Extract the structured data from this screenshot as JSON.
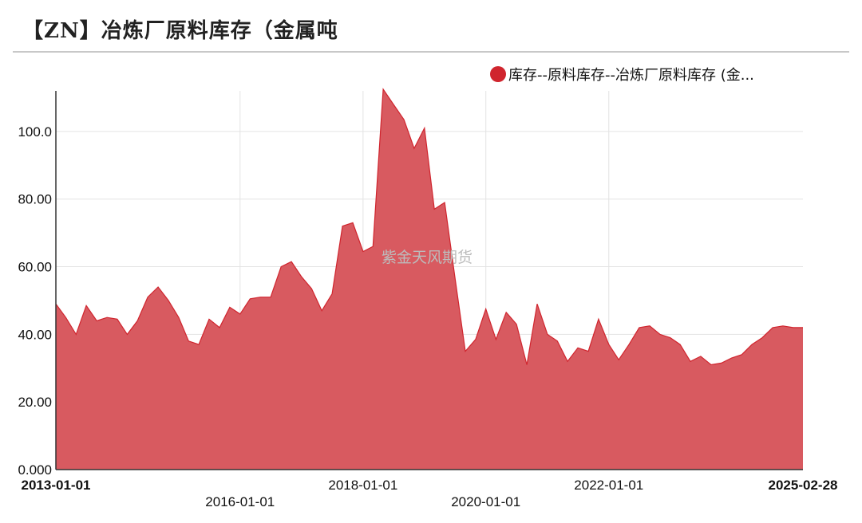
{
  "chart_data": {
    "type": "area",
    "title": "【ZN】冶炼厂原料库存（金属吨",
    "legend": [
      "库存--原料库存--冶炼厂原料库存 (金..."
    ],
    "watermark": "紫金天风期货",
    "series_color": "#d0252e",
    "fill_color": "#d85a60",
    "grid": true,
    "legend_position": "top-right",
    "ylim": [
      0,
      112
    ],
    "y_ticks": [
      {
        "value": 0,
        "label": "0.000"
      },
      {
        "value": 20,
        "label": "20.00"
      },
      {
        "value": 40,
        "label": "40.00"
      },
      {
        "value": 60,
        "label": "60.00"
      },
      {
        "value": 80,
        "label": "80.00"
      },
      {
        "value": 100,
        "label": "100.0"
      }
    ],
    "x_ticks": [
      {
        "date": "2013-01-01",
        "label": "2013-01-01",
        "bold": true,
        "row": 0
      },
      {
        "date": "2016-01-01",
        "label": "2016-01-01",
        "bold": false,
        "row": 1
      },
      {
        "date": "2018-01-01",
        "label": "2018-01-01",
        "bold": false,
        "row": 0
      },
      {
        "date": "2020-01-01",
        "label": "2020-01-01",
        "bold": false,
        "row": 1
      },
      {
        "date": "2022-01-01",
        "label": "2022-01-01",
        "bold": false,
        "row": 0
      },
      {
        "date": "2025-02-28",
        "label": "2025-02-28",
        "bold": true,
        "row": 0
      }
    ],
    "x_grid_dates": [
      "2016-01-01",
      "2018-01-01",
      "2020-01-01",
      "2022-01-01"
    ],
    "xlim": [
      "2013-01-01",
      "2025-02-28"
    ],
    "points": [
      [
        "2013-01-01",
        49
      ],
      [
        "2013-03-01",
        45
      ],
      [
        "2013-05-01",
        40
      ],
      [
        "2013-07-01",
        48.5
      ],
      [
        "2013-09-01",
        44
      ],
      [
        "2013-11-01",
        45
      ],
      [
        "2014-01-01",
        44.5
      ],
      [
        "2014-03-01",
        40
      ],
      [
        "2014-05-01",
        44
      ],
      [
        "2014-07-01",
        51
      ],
      [
        "2014-09-01",
        54
      ],
      [
        "2014-11-01",
        50
      ],
      [
        "2015-01-01",
        45
      ],
      [
        "2015-03-01",
        38
      ],
      [
        "2015-05-01",
        37
      ],
      [
        "2015-07-01",
        44.5
      ],
      [
        "2015-09-01",
        42
      ],
      [
        "2015-11-01",
        48
      ],
      [
        "2016-01-01",
        46
      ],
      [
        "2016-03-01",
        50.5
      ],
      [
        "2016-05-01",
        51
      ],
      [
        "2016-07-01",
        51
      ],
      [
        "2016-09-01",
        60
      ],
      [
        "2016-11-01",
        61.5
      ],
      [
        "2017-01-01",
        57
      ],
      [
        "2017-03-01",
        53.5
      ],
      [
        "2017-05-01",
        47
      ],
      [
        "2017-07-01",
        52
      ],
      [
        "2017-09-01",
        72
      ],
      [
        "2017-11-01",
        73
      ],
      [
        "2018-01-01",
        64.5
      ],
      [
        "2018-03-01",
        66
      ],
      [
        "2018-05-01",
        112.5
      ],
      [
        "2018-07-01",
        108
      ],
      [
        "2018-09-01",
        103.5
      ],
      [
        "2018-11-01",
        95
      ],
      [
        "2019-01-01",
        101
      ],
      [
        "2019-03-01",
        77
      ],
      [
        "2019-05-01",
        79
      ],
      [
        "2019-07-01",
        57
      ],
      [
        "2019-09-01",
        35
      ],
      [
        "2019-11-01",
        38.5
      ],
      [
        "2020-01-01",
        47.5
      ],
      [
        "2020-03-01",
        38.5
      ],
      [
        "2020-05-01",
        46.5
      ],
      [
        "2020-07-01",
        43
      ],
      [
        "2020-09-01",
        31
      ],
      [
        "2020-11-01",
        49
      ],
      [
        "2021-01-01",
        40
      ],
      [
        "2021-03-01",
        38
      ],
      [
        "2021-05-01",
        32
      ],
      [
        "2021-07-01",
        36
      ],
      [
        "2021-09-01",
        35
      ],
      [
        "2021-11-01",
        44.5
      ],
      [
        "2022-01-01",
        37
      ],
      [
        "2022-03-01",
        32.5
      ],
      [
        "2022-05-01",
        37
      ],
      [
        "2022-07-01",
        42
      ],
      [
        "2022-09-01",
        42.5
      ],
      [
        "2022-11-01",
        40
      ],
      [
        "2023-01-01",
        39
      ],
      [
        "2023-03-01",
        37
      ],
      [
        "2023-05-01",
        32
      ],
      [
        "2023-07-01",
        33.5
      ],
      [
        "2023-09-01",
        31
      ],
      [
        "2023-11-01",
        31.5
      ],
      [
        "2024-01-01",
        33
      ],
      [
        "2024-03-01",
        34
      ],
      [
        "2024-05-01",
        37
      ],
      [
        "2024-07-01",
        39
      ],
      [
        "2024-09-01",
        42
      ],
      [
        "2024-11-01",
        42.5
      ],
      [
        "2025-01-01",
        42
      ],
      [
        "2025-02-28",
        42
      ]
    ]
  }
}
